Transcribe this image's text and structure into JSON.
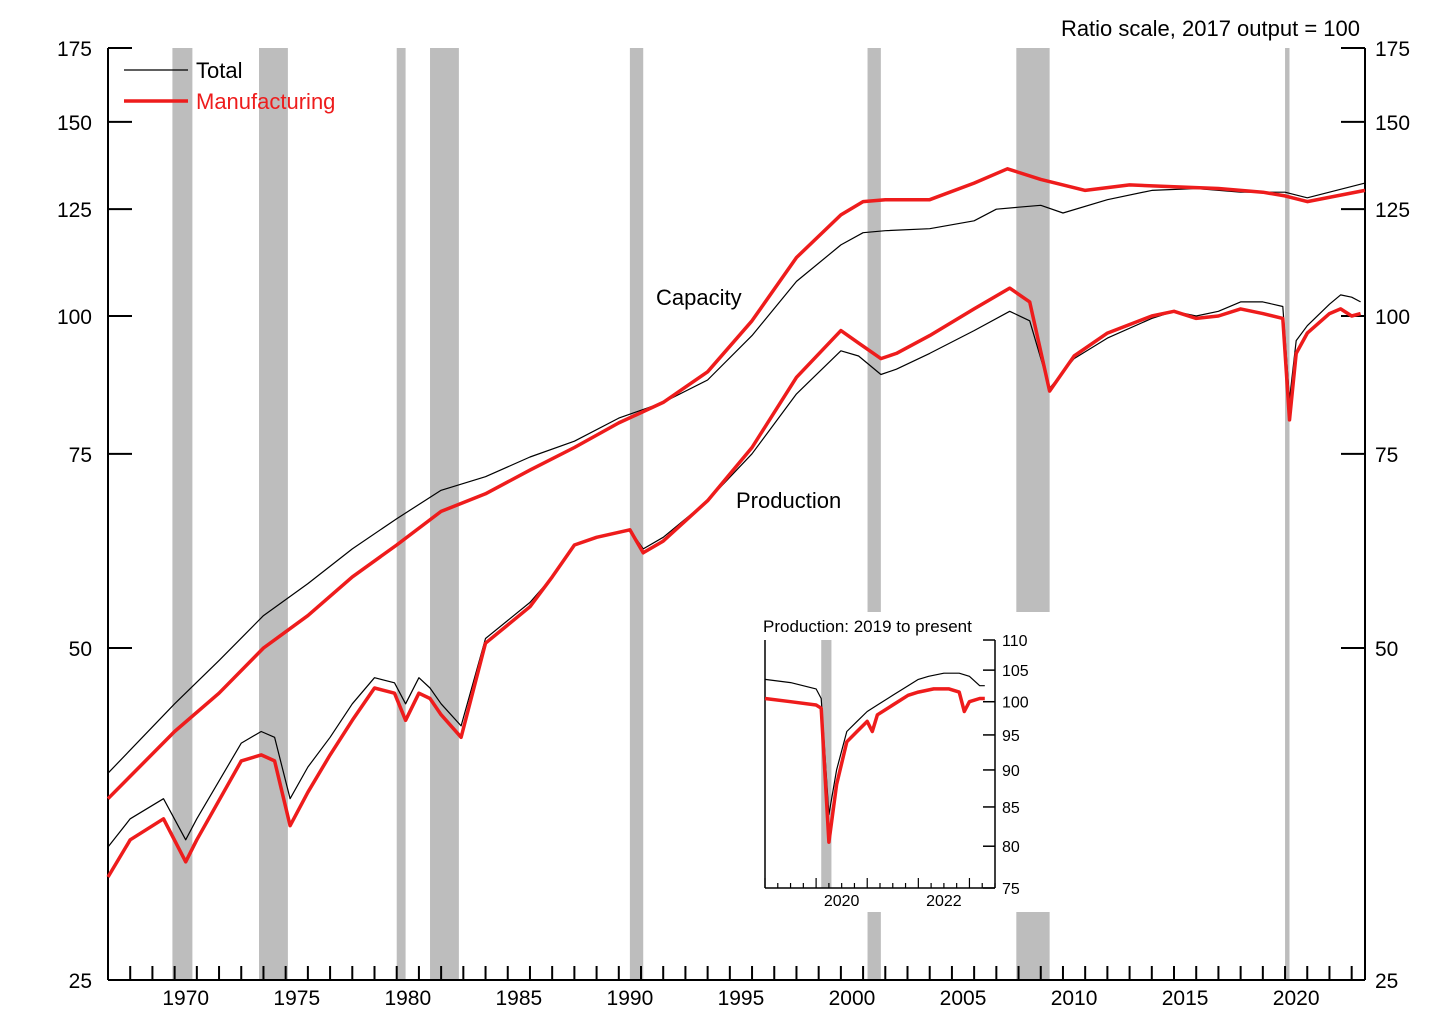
{
  "chart_data": [
    {
      "type": "line",
      "scale_note": "Ratio scale, 2017 output = 100",
      "y_scale": "log",
      "ylim": [
        25,
        175
      ],
      "xlim": [
        1967,
        2023.6
      ],
      "y_ticks": [
        25,
        50,
        75,
        100,
        125,
        150,
        175
      ],
      "x_ticks": [
        1970,
        1975,
        1980,
        1985,
        1990,
        1995,
        2000,
        2005,
        2010,
        2015,
        2020
      ],
      "legend": {
        "position": "top-left",
        "entries": [
          "Total",
          "Manufacturing"
        ]
      },
      "annotations": [
        "Capacity",
        "Production"
      ],
      "colors": {
        "total": "#000000",
        "manufacturing": "#ee1c1c",
        "recession": "#bdbdbd"
      },
      "recessions": [
        [
          1969.9,
          1970.8
        ],
        [
          1973.8,
          1975.1
        ],
        [
          1980.0,
          1980.4
        ],
        [
          1981.5,
          1982.8
        ],
        [
          1990.5,
          1991.1
        ],
        [
          2001.2,
          2001.8
        ],
        [
          2007.9,
          2009.4
        ],
        [
          2020.0,
          2020.2
        ]
      ],
      "series": [
        {
          "name": "Total",
          "group": "Capacity",
          "x": [
            1967.0,
            1970.0,
            1972.0,
            1974.0,
            1976.0,
            1978.0,
            1980.0,
            1982.0,
            1984.0,
            1986.0,
            1988.0,
            1990.0,
            1992.0,
            1994.0,
            1996.0,
            1998.0,
            2000.0,
            2001.0,
            2002.0,
            2004.0,
            2006.0,
            2007.0,
            2008.0,
            2009.0,
            2010.0,
            2012.0,
            2014.0,
            2016.0,
            2018.0,
            2020.0,
            2021.0,
            2023.6
          ],
          "y": [
            38.5,
            44.5,
            48.7,
            53.5,
            57.2,
            61.5,
            65.5,
            69.5,
            71.5,
            74.5,
            77.0,
            80.8,
            83.5,
            87.5,
            96.0,
            107.5,
            116.0,
            119.0,
            119.5,
            120.0,
            122.0,
            125.0,
            125.5,
            126.0,
            124.0,
            127.5,
            130.0,
            130.5,
            129.5,
            129.5,
            128.0,
            132.0
          ]
        },
        {
          "name": "Manufacturing",
          "group": "Capacity",
          "x": [
            1967.0,
            1970.0,
            1972.0,
            1974.0,
            1976.0,
            1978.0,
            1980.0,
            1982.0,
            1984.0,
            1986.0,
            1988.0,
            1990.0,
            1992.0,
            1994.0,
            1996.0,
            1998.0,
            2000.0,
            2001.0,
            2002.0,
            2004.0,
            2006.0,
            2007.5,
            2009.0,
            2011.0,
            2013.0,
            2015.0,
            2017.0,
            2019.0,
            2020.0,
            2021.0,
            2023.6
          ],
          "y": [
            36.5,
            42.0,
            45.5,
            50.0,
            53.5,
            58.0,
            62.0,
            66.5,
            69.0,
            72.5,
            76.0,
            80.0,
            83.5,
            89.0,
            99.0,
            113.0,
            123.5,
            127.0,
            127.5,
            127.5,
            132.0,
            136.0,
            133.0,
            130.0,
            131.5,
            131.0,
            130.5,
            129.5,
            128.5,
            127.0,
            130.0
          ]
        },
        {
          "name": "Total",
          "group": "Production",
          "x": [
            1967.0,
            1968.0,
            1969.5,
            1970.5,
            1971.0,
            1973.0,
            1973.9,
            1974.5,
            1975.2,
            1976.0,
            1977.0,
            1978.0,
            1979.0,
            1979.9,
            1980.4,
            1981.0,
            1981.5,
            1982.0,
            1982.9,
            1984.0,
            1986.0,
            1987.0,
            1988.0,
            1989.0,
            1990.5,
            1991.1,
            1992.0,
            1994.0,
            1996.0,
            1998.0,
            2000.0,
            2000.8,
            2001.8,
            2002.5,
            2004.0,
            2006.0,
            2007.6,
            2008.5,
            2009.4,
            2010.5,
            2012.0,
            2014.0,
            2015.0,
            2016.0,
            2017.0,
            2018.0,
            2019.0,
            2019.9,
            2020.2,
            2020.5,
            2021.0,
            2022.0,
            2022.5,
            2023.0,
            2023.4
          ],
          "y": [
            33.0,
            35.0,
            36.5,
            33.5,
            35.0,
            41.0,
            42.0,
            41.5,
            36.5,
            39.0,
            41.5,
            44.5,
            47.0,
            46.5,
            44.5,
            47.0,
            46.0,
            44.5,
            42.5,
            51.0,
            55.0,
            58.0,
            62.0,
            63.0,
            64.0,
            61.5,
            63.0,
            68.0,
            75.0,
            85.0,
            93.0,
            92.0,
            88.5,
            89.5,
            92.5,
            97.0,
            101.0,
            99.0,
            86.0,
            91.5,
            95.5,
            99.5,
            101.0,
            100.0,
            101.0,
            103.0,
            103.0,
            102.0,
            84.0,
            95.0,
            98.0,
            102.5,
            104.5,
            104.0,
            103.0
          ]
        },
        {
          "name": "Manufacturing",
          "group": "Production",
          "x": [
            1967.0,
            1968.0,
            1969.5,
            1970.5,
            1971.0,
            1973.0,
            1973.9,
            1974.5,
            1975.2,
            1976.0,
            1977.0,
            1978.0,
            1979.0,
            1979.9,
            1980.4,
            1981.0,
            1981.5,
            1982.0,
            1982.9,
            1984.0,
            1986.0,
            1987.0,
            1988.0,
            1989.0,
            1990.5,
            1991.1,
            1992.0,
            1994.0,
            1996.0,
            1998.0,
            2000.0,
            2000.8,
            2001.8,
            2002.5,
            2004.0,
            2006.0,
            2007.6,
            2008.5,
            2009.4,
            2010.5,
            2012.0,
            2014.0,
            2015.0,
            2016.0,
            2017.0,
            2018.0,
            2019.0,
            2019.9,
            2020.2,
            2020.5,
            2021.0,
            2022.0,
            2022.5,
            2023.0,
            2023.4
          ],
          "y": [
            31.0,
            33.5,
            35.0,
            32.0,
            33.5,
            39.5,
            40.0,
            39.5,
            34.5,
            37.0,
            40.0,
            43.0,
            46.0,
            45.5,
            43.0,
            45.5,
            45.0,
            43.5,
            41.5,
            50.5,
            54.5,
            58.0,
            62.0,
            63.0,
            64.0,
            61.0,
            62.5,
            68.0,
            76.0,
            88.0,
            97.0,
            94.5,
            91.5,
            92.5,
            96.0,
            101.5,
            106.0,
            103.0,
            85.5,
            92.0,
            96.5,
            100.0,
            101.0,
            99.5,
            100.0,
            101.5,
            100.5,
            99.5,
            80.5,
            92.5,
            96.5,
            100.5,
            101.5,
            100.0,
            100.5
          ]
        }
      ]
    },
    {
      "type": "line",
      "title": "Production: 2019 to present",
      "y_scale": "log",
      "ylim": [
        75,
        110
      ],
      "xlim": [
        2019.0,
        2023.5
      ],
      "y_ticks": [
        75,
        80,
        85,
        90,
        95,
        100,
        105,
        110
      ],
      "x_ticks": [
        2020,
        2022
      ],
      "recessions": [
        [
          2020.1,
          2020.3
        ]
      ],
      "series": [
        {
          "name": "Total",
          "x": [
            2019.0,
            2019.5,
            2020.0,
            2020.1,
            2020.25,
            2020.4,
            2020.6,
            2020.8,
            2021.0,
            2021.2,
            2021.5,
            2021.8,
            2022.0,
            2022.2,
            2022.5,
            2022.8,
            2023.0,
            2023.2,
            2023.3
          ],
          "y": [
            103.5,
            103.0,
            102.0,
            100.5,
            84.0,
            90.0,
            95.5,
            97.0,
            98.5,
            99.5,
            101.0,
            102.5,
            103.5,
            104.0,
            104.5,
            104.5,
            104.0,
            102.5,
            102.5
          ]
        },
        {
          "name": "Manufacturing",
          "x": [
            2019.0,
            2019.5,
            2020.0,
            2020.1,
            2020.25,
            2020.4,
            2020.6,
            2020.8,
            2021.0,
            2021.1,
            2021.2,
            2021.5,
            2021.8,
            2022.0,
            2022.3,
            2022.6,
            2022.8,
            2022.9,
            2023.0,
            2023.2,
            2023.3
          ],
          "y": [
            100.5,
            100.0,
            99.5,
            99.0,
            80.5,
            88.0,
            94.0,
            95.5,
            97.0,
            95.5,
            98.0,
            99.5,
            101.0,
            101.5,
            102.0,
            102.0,
            101.5,
            98.5,
            100.0,
            100.5,
            100.5
          ]
        }
      ]
    }
  ]
}
